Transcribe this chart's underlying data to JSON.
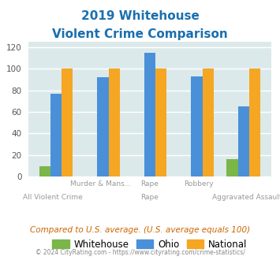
{
  "title_line1": "2019 Whitehouse",
  "title_line2": "Violent Crime Comparison",
  "categories": [
    "All Violent Crime",
    "Murder & Mans...",
    "Rape",
    "Robbery",
    "Aggravated Assault"
  ],
  "whitehouse": [
    10,
    0,
    0,
    0,
    16
  ],
  "ohio": [
    77,
    92,
    115,
    93,
    65
  ],
  "national": [
    100,
    100,
    100,
    100,
    100
  ],
  "color_whitehouse": "#7ab648",
  "color_ohio": "#4a90d9",
  "color_national": "#f5a623",
  "ylim": [
    0,
    125
  ],
  "yticks": [
    0,
    20,
    40,
    60,
    80,
    100,
    120
  ],
  "background_color": "#dce9ea",
  "grid_color": "#ffffff",
  "title_color": "#1a6faf",
  "subtitle_text": "Compared to U.S. average. (U.S. average equals 100)",
  "subtitle_color": "#cc6600",
  "footer_text": "© 2024 CityRating.com - https://www.cityrating.com/crime-statistics/",
  "footer_color": "#888888",
  "legend_labels": [
    "Whitehouse",
    "Ohio",
    "National"
  ],
  "x_top": {
    "1": "Murder & Mans...",
    "2": "Rape",
    "3": "Robbery"
  },
  "x_bot": {
    "0": "All Violent Crime",
    "2": "Rape",
    "4": "Aggravated Assault"
  }
}
